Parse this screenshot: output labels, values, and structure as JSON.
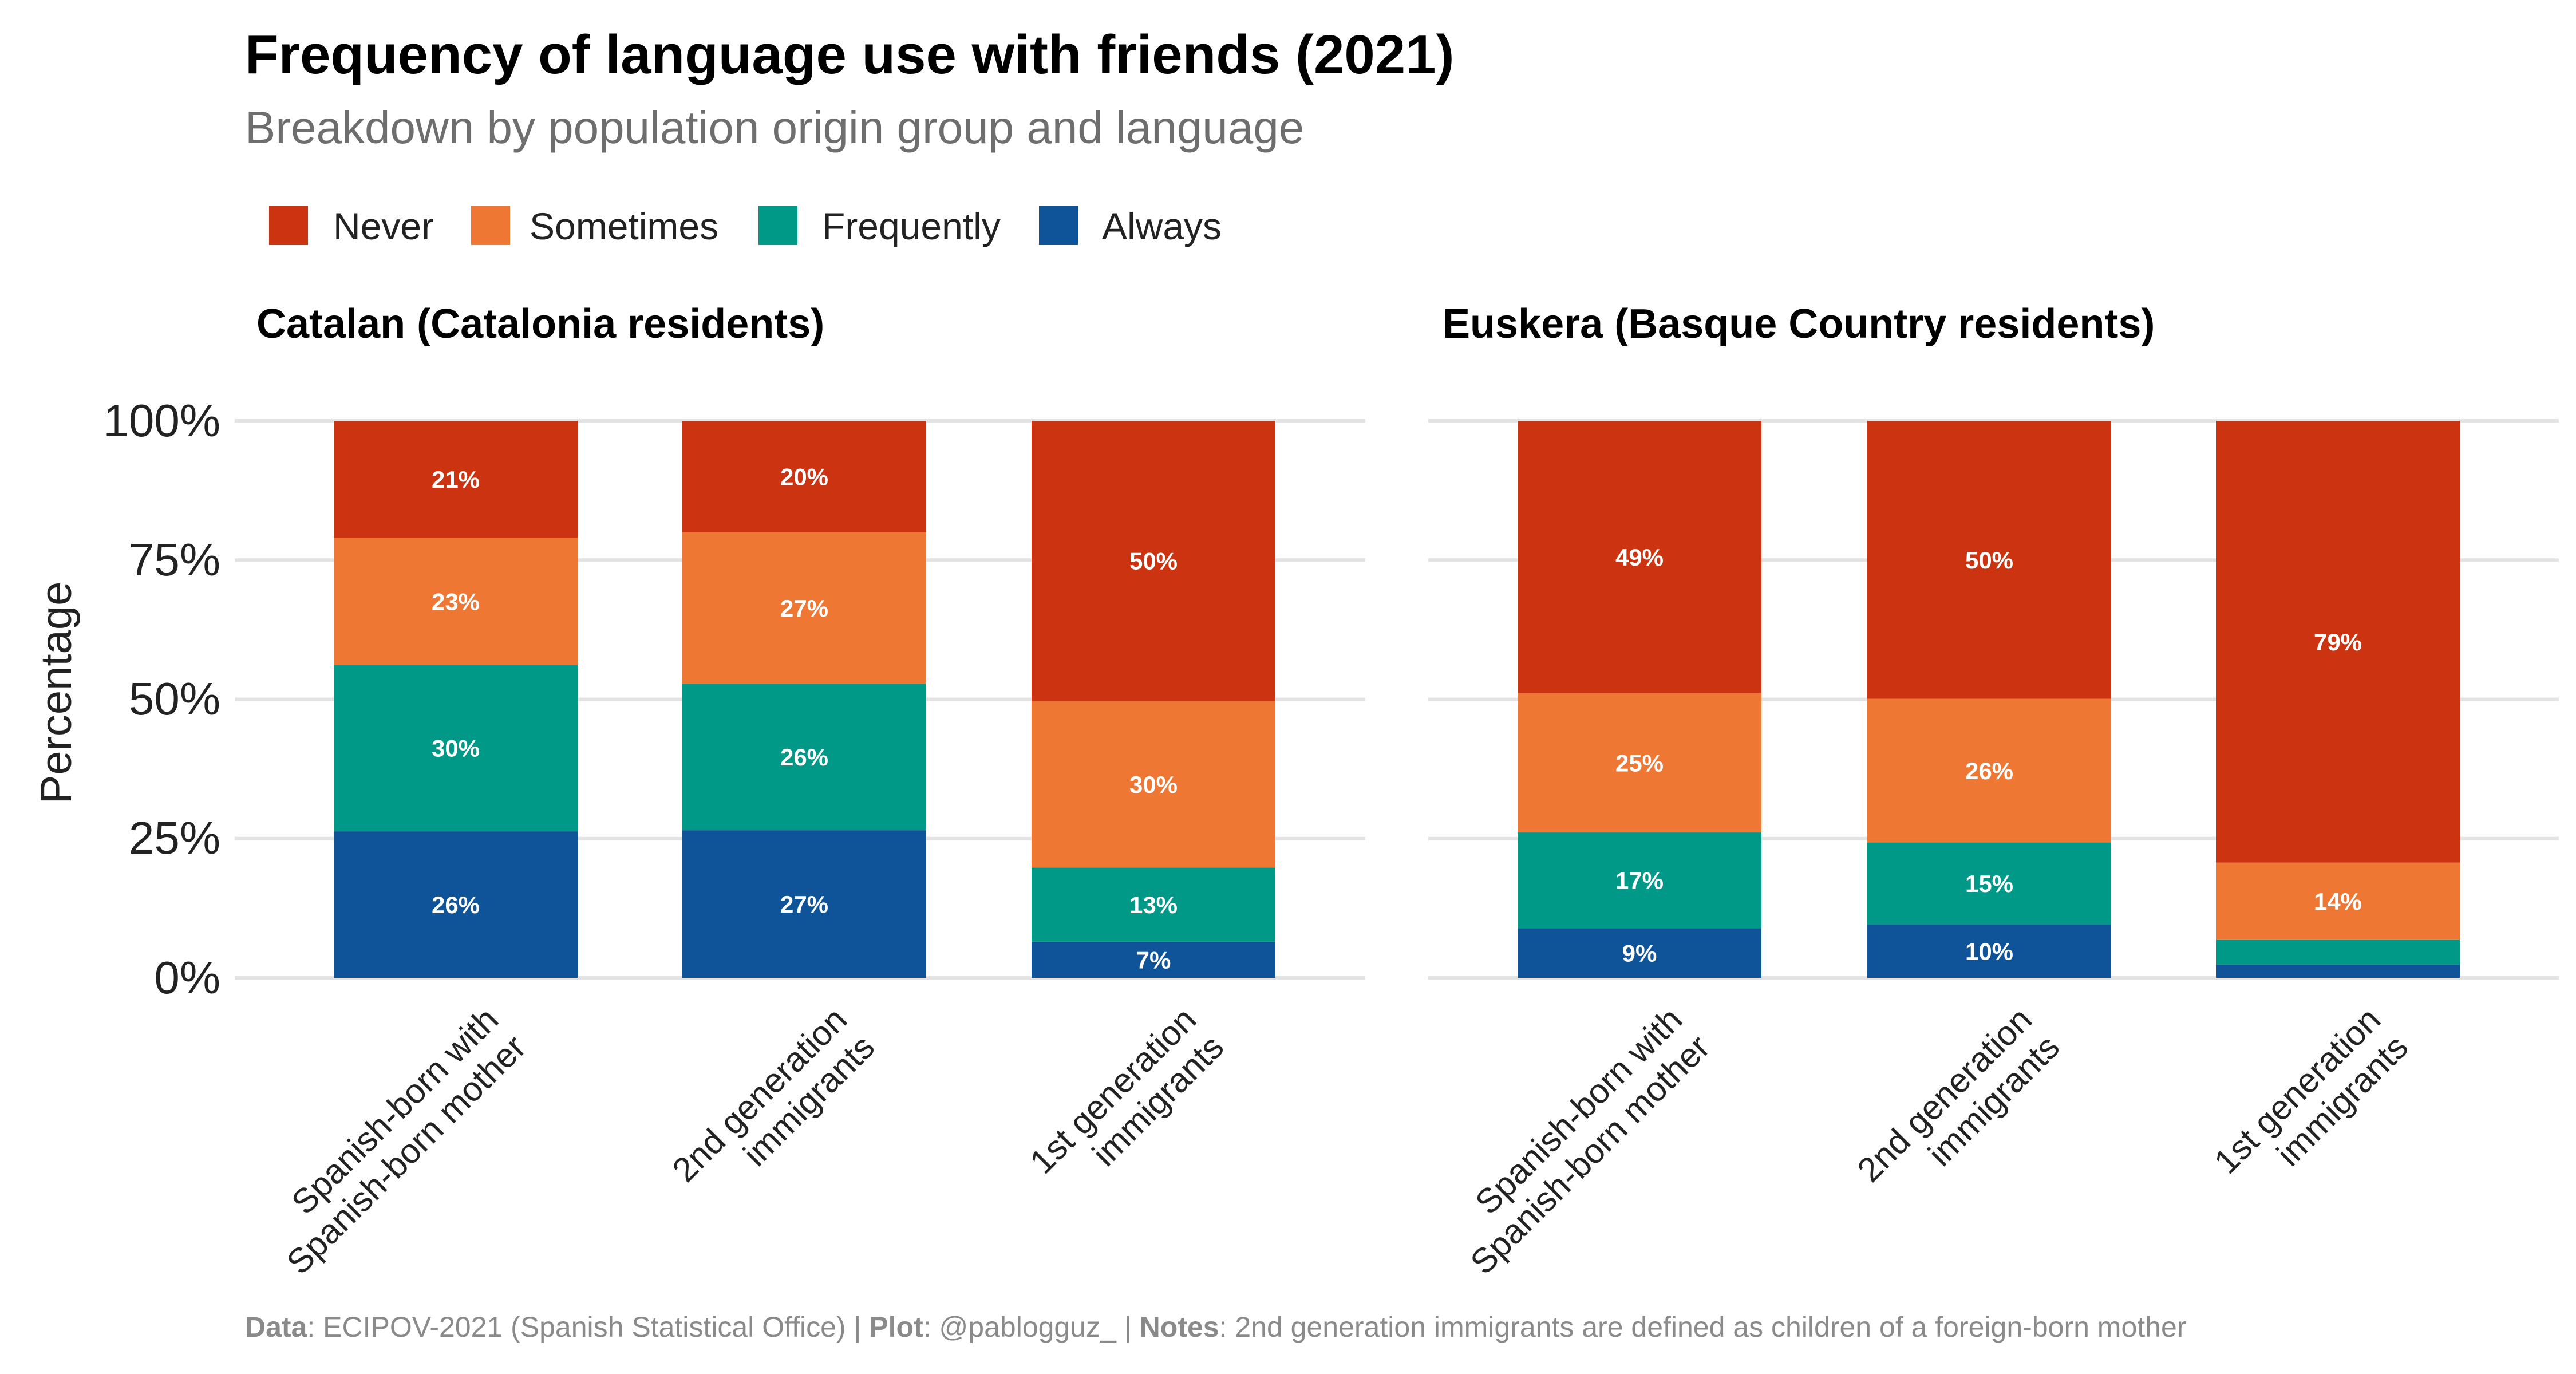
{
  "title": "Frequency of language use with friends (2021)",
  "subtitle": "Breakdown by population origin group and language",
  "ylabel": "Percentage",
  "y_ticks": [
    "0%",
    "25%",
    "50%",
    "75%",
    "100%"
  ],
  "legend": [
    {
      "name": "Never",
      "color": "#CC3311"
    },
    {
      "name": "Sometimes",
      "color": "#EE7733"
    },
    {
      "name": "Frequently",
      "color": "#009988"
    },
    {
      "name": "Always",
      "color": "#0F5499"
    }
  ],
  "caption": {
    "data_label": "Data",
    "data_text": ": ECIPOV-2021 (Spanish Statistical Office) | ",
    "plot_label": "Plot",
    "plot_text": ": @pablogguz_ | ",
    "notes_label": "Notes",
    "notes_text": ": 2nd generation immigrants are defined as children of a foreign-born mother"
  },
  "chart_data": [
    {
      "type": "bar",
      "stacked": true,
      "title": "Catalan (Catalonia residents)",
      "ylabel": "Percentage",
      "ylim": [
        0,
        100
      ],
      "categories": [
        [
          "Spanish-born with",
          "Spanish-born mother"
        ],
        [
          "2nd generation",
          "immigrants"
        ],
        [
          "1st generation",
          "immigrants"
        ]
      ],
      "series": [
        {
          "name": "Always",
          "color": "#0F5499",
          "values": [
            26.3,
            26.5,
            6.5
          ],
          "labels": [
            "26%",
            "27%",
            "7%"
          ]
        },
        {
          "name": "Frequently",
          "color": "#009988",
          "values": [
            29.9,
            26.3,
            13.3
          ],
          "labels": [
            "30%",
            "26%",
            "13%"
          ]
        },
        {
          "name": "Sometimes",
          "color": "#EE7733",
          "values": [
            22.8,
            27.2,
            29.9
          ],
          "labels": [
            "23%",
            "27%",
            "30%"
          ]
        },
        {
          "name": "Never",
          "color": "#CC3311",
          "values": [
            21.0,
            20.0,
            50.3
          ],
          "labels": [
            "21%",
            "20%",
            "50%"
          ]
        }
      ]
    },
    {
      "type": "bar",
      "stacked": true,
      "title": "Euskera (Basque Country residents)",
      "ylabel": "Percentage",
      "ylim": [
        0,
        100
      ],
      "categories": [
        [
          "Spanish-born with",
          "Spanish-born mother"
        ],
        [
          "2nd generation",
          "immigrants"
        ],
        [
          "1st generation",
          "immigrants"
        ]
      ],
      "series": [
        {
          "name": "Always",
          "color": "#0F5499",
          "values": [
            8.9,
            9.6,
            2.4
          ],
          "labels": [
            "9%",
            "10%",
            ""
          ]
        },
        {
          "name": "Frequently",
          "color": "#009988",
          "values": [
            17.2,
            14.7,
            4.4
          ],
          "labels": [
            "17%",
            "15%",
            ""
          ]
        },
        {
          "name": "Sometimes",
          "color": "#EE7733",
          "values": [
            25.0,
            25.8,
            13.9
          ],
          "labels": [
            "25%",
            "26%",
            "14%"
          ]
        },
        {
          "name": "Never",
          "color": "#CC3311",
          "values": [
            48.9,
            49.9,
            79.3
          ],
          "labels": [
            "49%",
            "50%",
            "79%"
          ]
        }
      ]
    }
  ]
}
